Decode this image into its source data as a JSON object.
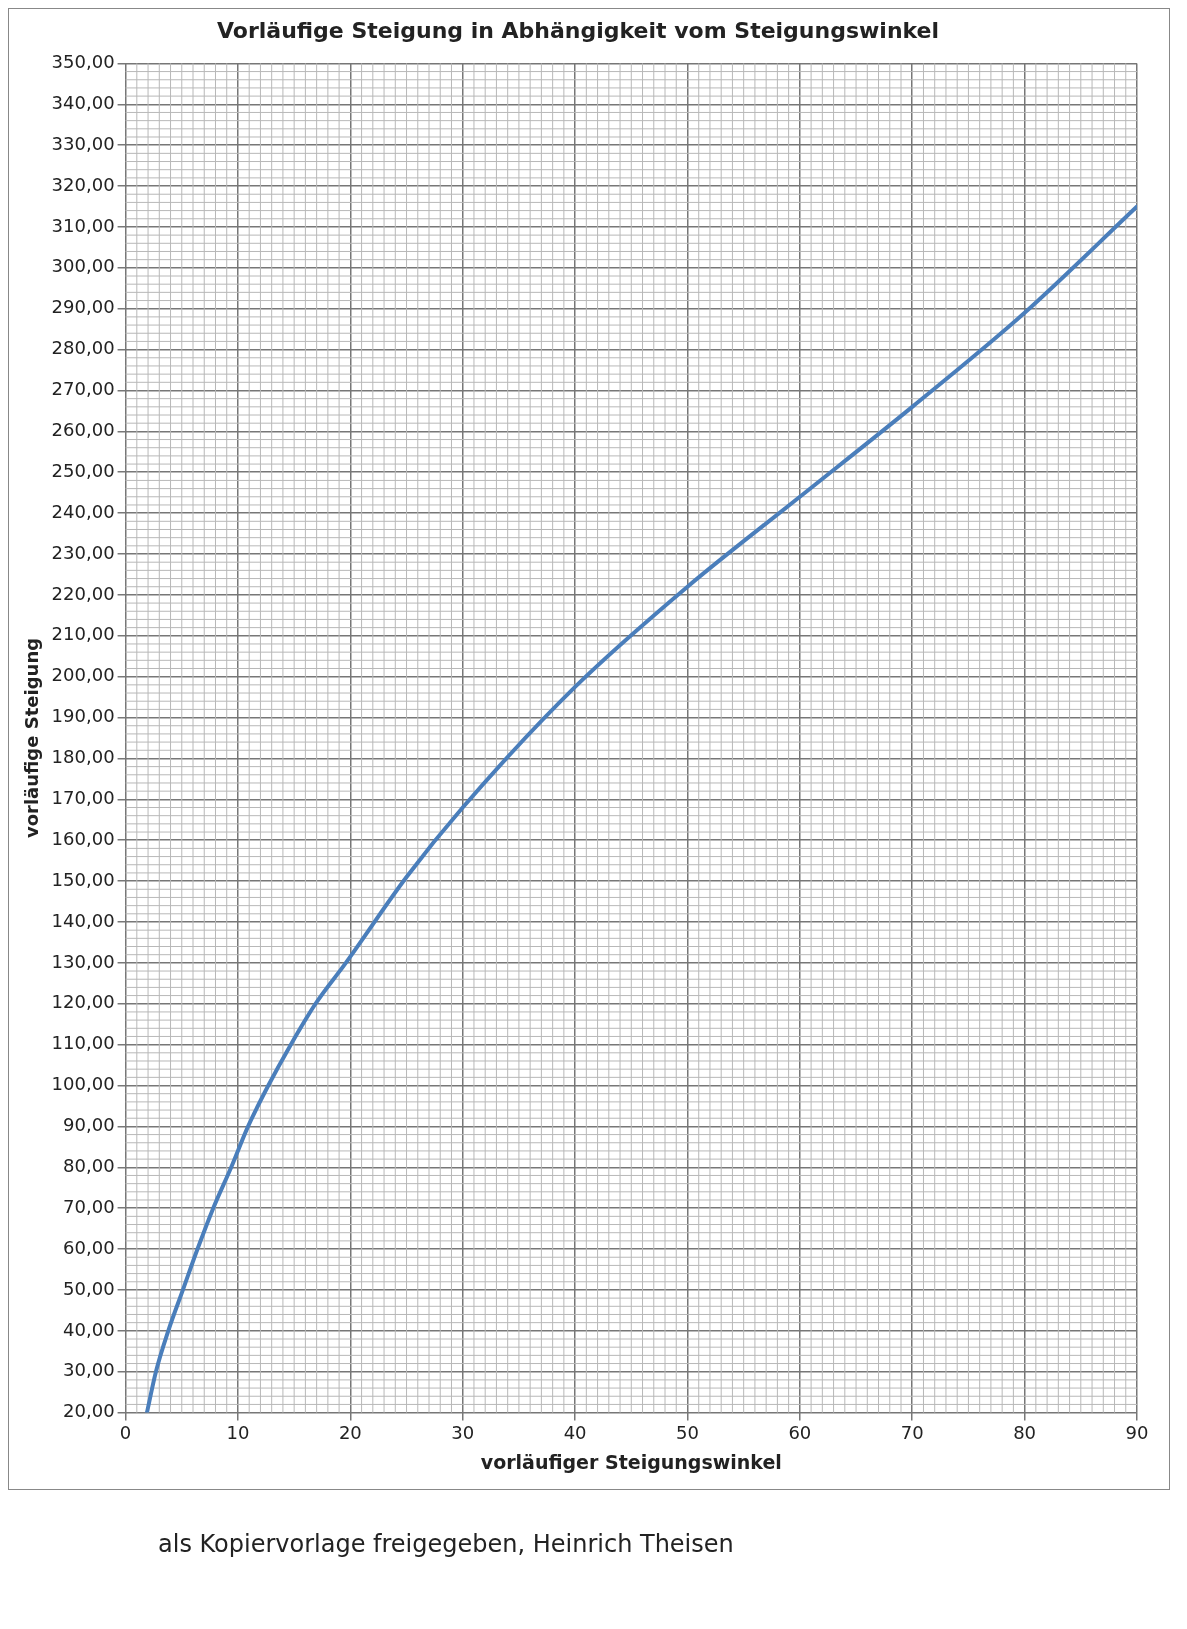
{
  "chart_data": {
    "type": "line",
    "title": "Vorläufige Steigung in Abhängigkeit vom Steigungswinkel",
    "xlabel": "vorläufiger Steigungswinkel",
    "ylabel": "vorläufige Steigung",
    "annotations": [
      "als Kopiervorlage freigegeben, Heinrich Theisen"
    ],
    "x": [
      1.9,
      2.7,
      3.8,
      5.1,
      6.4,
      7.8,
      9.4,
      10.9,
      12.7,
      14.7,
      16.9,
      19.6,
      25,
      30,
      40,
      50,
      60,
      70,
      80,
      90
    ],
    "series": [
      {
        "color": "#4a7ebb",
        "values": [
          20,
          30,
          40,
          50,
          60,
          70,
          80,
          90,
          100,
          110,
          120,
          130,
          151,
          168,
          197.5,
          222,
          244,
          266,
          289,
          315
        ]
      }
    ],
    "xlim": [
      0,
      90
    ],
    "xticks": [
      0,
      10,
      20,
      30,
      40,
      50,
      60,
      70,
      80,
      90
    ],
    "ylim": [
      20,
      350
    ],
    "yticks": [
      {
        "value": 20,
        "label": "20,00"
      },
      {
        "value": 30,
        "label": "30,00"
      },
      {
        "value": 40,
        "label": "40,00"
      },
      {
        "value": 50,
        "label": "50,00"
      },
      {
        "value": 60,
        "label": "60,00"
      },
      {
        "value": 70,
        "label": "70,00"
      },
      {
        "value": 80,
        "label": "80,00"
      },
      {
        "value": 90,
        "label": "90,00"
      },
      {
        "value": 100,
        "label": "100,00"
      },
      {
        "value": 110,
        "label": "110,00"
      },
      {
        "value": 120,
        "label": "120,00"
      },
      {
        "value": 130,
        "label": "130,00"
      },
      {
        "value": 140,
        "label": "140,00"
      },
      {
        "value": 150,
        "label": "150,00"
      },
      {
        "value": 160,
        "label": "160,00"
      },
      {
        "value": 170,
        "label": "170,00"
      },
      {
        "value": 180,
        "label": "180,00"
      },
      {
        "value": 190,
        "label": "190,00"
      },
      {
        "value": 200,
        "label": "200,00"
      },
      {
        "value": 210,
        "label": "210,00"
      },
      {
        "value": 220,
        "label": "220,00"
      },
      {
        "value": 230,
        "label": "230,00"
      },
      {
        "value": 240,
        "label": "240,00"
      },
      {
        "value": 250,
        "label": "250,00"
      },
      {
        "value": 260,
        "label": "260,00"
      },
      {
        "value": 270,
        "label": "270,00"
      },
      {
        "value": 280,
        "label": "280,00"
      },
      {
        "value": 290,
        "label": "290,00"
      },
      {
        "value": 300,
        "label": "300,00"
      },
      {
        "value": 310,
        "label": "310,00"
      },
      {
        "value": 320,
        "label": "320,00"
      },
      {
        "value": 330,
        "label": "330,00"
      },
      {
        "value": 340,
        "label": "340,00"
      },
      {
        "value": 350,
        "label": "350,00"
      }
    ],
    "grid": true,
    "marker": "none",
    "line_style": "solid"
  }
}
